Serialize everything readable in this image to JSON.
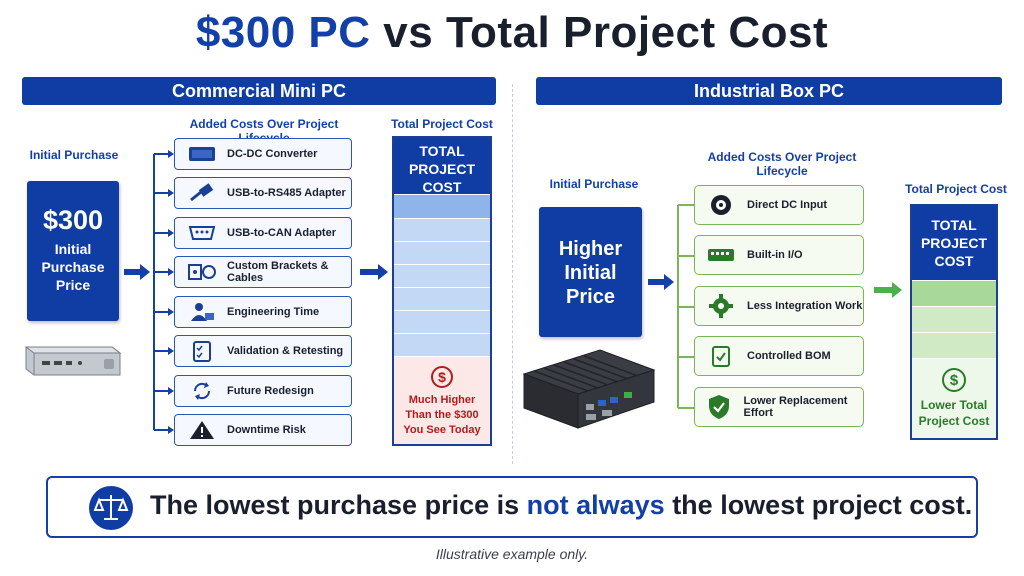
{
  "title": {
    "part1": "$300 PC",
    "part2": " vs Total Project Cost"
  },
  "left": {
    "banner": "Commercial Mini PC",
    "initial_label": "Initial Purchase",
    "price": "$300",
    "price_desc_1": "Initial",
    "price_desc_2": "Purchase",
    "price_desc_3": "Price",
    "added_label": "Added Costs Over Project Lifecycle",
    "items": [
      {
        "label": "DC-DC Converter",
        "icon": "converter-icon"
      },
      {
        "label": "USB-to-RS485 Adapter",
        "icon": "usb-cable-icon"
      },
      {
        "label": "USB-to-CAN Adapter",
        "icon": "serial-port-icon"
      },
      {
        "label": "Custom Brackets & Cables",
        "icon": "bracket-cable-icon"
      },
      {
        "label": "Engineering Time",
        "icon": "engineer-icon"
      },
      {
        "label": "Validation & Retesting",
        "icon": "checklist-icon"
      },
      {
        "label": "Future Redesign",
        "icon": "refresh-icon"
      },
      {
        "label": "Downtime Risk",
        "icon": "warning-icon"
      }
    ],
    "total_label": "Total Project Cost",
    "total_head_1": "TOTAL",
    "total_head_2": "PROJECT",
    "total_head_3": "COST",
    "total_note_1": "Much Higher",
    "total_note_2": "Than the $300",
    "total_note_3": "You See Today"
  },
  "right": {
    "banner": "Industrial Box PC",
    "initial_label": "Initial Purchase",
    "price_1": "Higher",
    "price_2": "Initial",
    "price_3": "Price",
    "added_label": "Added Costs Over Project Lifecycle",
    "items": [
      {
        "label": "Direct DC Input",
        "icon": "power-jack-icon"
      },
      {
        "label": "Built-in I/O",
        "icon": "io-board-icon"
      },
      {
        "label": "Less Integration Work",
        "icon": "gear-icon"
      },
      {
        "label": "Controlled BOM",
        "icon": "clipboard-check-icon"
      },
      {
        "label": "Lower Replacement Effort",
        "icon": "shield-check-icon"
      }
    ],
    "total_label": "Total Project Cost",
    "total_head_1": "TOTAL",
    "total_head_2": "PROJECT",
    "total_head_3": "COST",
    "total_note_1": "Lower Total",
    "total_note_2": "Project Cost"
  },
  "footer": {
    "part1": "The lowest purchase price is ",
    "part2": "not always",
    "part3": " the lowest project cost.",
    "icon": "scales-icon"
  },
  "note": "Illustrative example only.",
  "colors": {
    "navy": "#0f3da3",
    "accent_blue": "#1340a8",
    "green": "#2a8a2a",
    "red": "#b11d1d"
  }
}
